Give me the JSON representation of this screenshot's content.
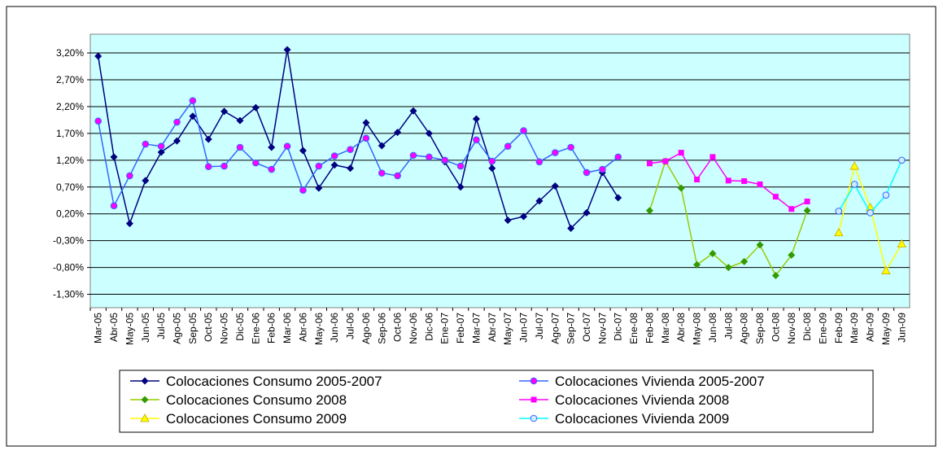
{
  "chart_data": {
    "type": "line",
    "categories": [
      "Mar-05",
      "Abr-05",
      "May-05",
      "Jun-05",
      "Jul-05",
      "Ago-05",
      "Sep-05",
      "Oct-05",
      "Nov-05",
      "Dic-05",
      "Ene-06",
      "Feb-06",
      "Mar-06",
      "Abr-06",
      "May-06",
      "Jun-06",
      "Jul-06",
      "Ago-06",
      "Sep-06",
      "Oct-06",
      "Nov-06",
      "Dic-06",
      "Ene-07",
      "Feb-07",
      "Mar-07",
      "Abr-07",
      "May-07",
      "Jun-07",
      "Jul-07",
      "Ago-07",
      "Sep-07",
      "Oct-07",
      "Nov-07",
      "Dic-07",
      "Ene-08",
      "Feb-08",
      "Mar-08",
      "Abr-08",
      "May-08",
      "Jun-08",
      "Jul-08",
      "Ago-08",
      "Sep-08",
      "Oct-08",
      "Nov-08",
      "Dic-08",
      "Ene-09",
      "Feb-09",
      "Mar-09",
      "Abr-09",
      "May-09",
      "Jun-09"
    ],
    "series": [
      {
        "name": "Colocaciones Consumo 2005-2007",
        "color": "#000080",
        "marker_color": "#000080",
        "marker": "diamond",
        "values": [
          3.14,
          1.26,
          0.02,
          0.82,
          1.35,
          1.56,
          2.02,
          1.59,
          2.11,
          1.94,
          2.18,
          1.44,
          3.26,
          1.38,
          0.68,
          1.11,
          1.05,
          1.9,
          1.47,
          1.72,
          2.12,
          1.7,
          1.17,
          0.7,
          1.97,
          1.05,
          0.08,
          0.15,
          0.44,
          0.72,
          -0.07,
          0.22,
          0.97,
          0.5,
          null,
          null,
          null,
          null,
          null,
          null,
          null,
          null,
          null,
          null,
          null,
          null,
          null,
          null,
          null,
          null,
          null,
          null
        ]
      },
      {
        "name": "Colocaciones Vivienda 2005-2007",
        "color": "#3366ff",
        "marker_color": "#ff00ff",
        "marker": "circle",
        "values": [
          1.93,
          0.35,
          0.91,
          1.5,
          1.46,
          1.91,
          2.31,
          1.08,
          1.09,
          1.44,
          1.15,
          1.03,
          1.46,
          0.64,
          1.09,
          1.28,
          1.4,
          1.61,
          0.96,
          0.91,
          1.29,
          1.26,
          1.2,
          1.09,
          1.58,
          1.18,
          1.46,
          1.75,
          1.17,
          1.34,
          1.44,
          0.97,
          1.03,
          1.26,
          null,
          null,
          null,
          null,
          null,
          null,
          null,
          null,
          null,
          null,
          null,
          null,
          null,
          null,
          null,
          null,
          null,
          null
        ]
      },
      {
        "name": "Colocaciones Consumo 2008",
        "color": "#99cc00",
        "marker_color": "#339900",
        "marker": "diamond",
        "values": [
          null,
          null,
          null,
          null,
          null,
          null,
          null,
          null,
          null,
          null,
          null,
          null,
          null,
          null,
          null,
          null,
          null,
          null,
          null,
          null,
          null,
          null,
          null,
          null,
          null,
          null,
          null,
          null,
          null,
          null,
          null,
          null,
          null,
          null,
          null,
          0.26,
          1.18,
          0.68,
          -0.75,
          -0.54,
          -0.8,
          -0.69,
          -0.38,
          -0.95,
          -0.57,
          0.26,
          null,
          null,
          null,
          null,
          null,
          null
        ]
      },
      {
        "name": "Colocaciones Vivienda 2008",
        "color": "#ff00ff",
        "marker_color": "#ff00ff",
        "marker": "square",
        "values": [
          null,
          null,
          null,
          null,
          null,
          null,
          null,
          null,
          null,
          null,
          null,
          null,
          null,
          null,
          null,
          null,
          null,
          null,
          null,
          null,
          null,
          null,
          null,
          null,
          null,
          null,
          null,
          null,
          null,
          null,
          null,
          null,
          null,
          null,
          null,
          1.14,
          1.18,
          1.34,
          0.84,
          1.26,
          0.82,
          0.81,
          0.75,
          0.52,
          0.29,
          0.43,
          null,
          null,
          null,
          null,
          null,
          null
        ]
      },
      {
        "name": "Colocaciones Consumo 2009",
        "color": "#ffff00",
        "marker_color": "#ffff00",
        "marker": "triangle",
        "values": [
          null,
          null,
          null,
          null,
          null,
          null,
          null,
          null,
          null,
          null,
          null,
          null,
          null,
          null,
          null,
          null,
          null,
          null,
          null,
          null,
          null,
          null,
          null,
          null,
          null,
          null,
          null,
          null,
          null,
          null,
          null,
          null,
          null,
          null,
          null,
          null,
          null,
          null,
          null,
          null,
          null,
          null,
          null,
          null,
          null,
          null,
          null,
          -0.15,
          1.09,
          0.32,
          -0.86,
          -0.36
        ]
      },
      {
        "name": "Colocaciones Vivienda 2009",
        "color": "#00ffff",
        "marker_color": "#ccecff",
        "marker": "circle",
        "values": [
          null,
          null,
          null,
          null,
          null,
          null,
          null,
          null,
          null,
          null,
          null,
          null,
          null,
          null,
          null,
          null,
          null,
          null,
          null,
          null,
          null,
          null,
          null,
          null,
          null,
          null,
          null,
          null,
          null,
          null,
          null,
          null,
          null,
          null,
          null,
          null,
          null,
          null,
          null,
          null,
          null,
          null,
          null,
          null,
          null,
          null,
          null,
          0.25,
          0.75,
          0.22,
          0.55,
          1.2
        ]
      }
    ],
    "ylim": [
      -1.55,
      3.55
    ],
    "yticks": [
      {
        "value": -1.3,
        "label": "-1,30%"
      },
      {
        "value": -0.8,
        "label": "-0,80%"
      },
      {
        "value": -0.3,
        "label": "-0,30%"
      },
      {
        "value": 0.2,
        "label": "0,20%"
      },
      {
        "value": 0.7,
        "label": "0,70%"
      },
      {
        "value": 1.2,
        "label": "1,20%"
      },
      {
        "value": 1.7,
        "label": "1,70%"
      },
      {
        "value": 2.2,
        "label": "2,20%"
      },
      {
        "value": 2.7,
        "label": "2,70%"
      },
      {
        "value": 3.2,
        "label": "3,20%"
      }
    ],
    "grid": true,
    "plot_background": "#ccffff",
    "legend_position": "bottom"
  }
}
